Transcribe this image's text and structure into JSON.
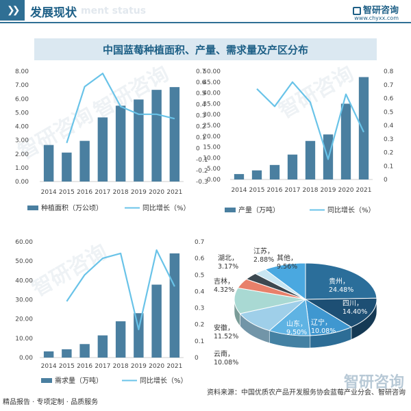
{
  "header": {
    "title": "发展现状",
    "ghost_text": "ment status"
  },
  "logo": {
    "name": "智研咨询",
    "url": "www.chyxx.com"
  },
  "banner": {
    "title": "中国蓝莓种植面积、产量、需求量及产区分布"
  },
  "watermark": "智研咨询",
  "footer": {
    "left": "精品报告 · 专项定制 · 品质服务",
    "source": "资料来源：中国优质农产品开发服务协会蓝莓产业分会、智研咨询",
    "logo": "智研咨询"
  },
  "colors": {
    "bar": "#4a7fa0",
    "line": "#69c3e8",
    "brand": "#1d5f86"
  },
  "chart_data": [
    {
      "type": "bar",
      "categories": [
        "2014",
        "2015",
        "2016",
        "2017",
        "2018",
        "2019",
        "2020",
        "2021"
      ],
      "series": [
        {
          "name": "种植面积（万公顷）",
          "kind": "bar",
          "axis": "left",
          "values": [
            2.65,
            2.1,
            2.95,
            4.65,
            5.5,
            5.95,
            6.65,
            6.85
          ]
        },
        {
          "name": "同比增长（%）",
          "kind": "line",
          "axis": "right",
          "values": [
            null,
            0.05,
            0.56,
            0.68,
            0.38,
            0.31,
            0.31,
            0.27
          ]
        }
      ],
      "ylim_left": [
        0,
        8
      ],
      "yticks_left": [
        "0.00",
        "1.00",
        "2.00",
        "3.00",
        "4.00",
        "5.00",
        "6.00",
        "7.00",
        "8.00"
      ],
      "ylim_right": [
        -0.3,
        0.7
      ],
      "yticks_right": [
        "-0.3",
        "-0.2",
        "-0.1",
        "0",
        "0.1",
        "0.2",
        "0.3",
        "0.4",
        "0.5",
        "0.6",
        "0.7"
      ],
      "legend": "bottom",
      "grid": false
    },
    {
      "type": "bar",
      "categories": [
        "2014",
        "2015",
        "2016",
        "2017",
        "2018",
        "2019",
        "2020",
        "2021"
      ],
      "series": [
        {
          "name": "产量（万吨）",
          "kind": "bar",
          "axis": "left",
          "values": [
            2.5,
            4.2,
            6.7,
            11.5,
            17.8,
            20.8,
            35.0,
            47.3
          ]
        },
        {
          "name": "同比增长（%）",
          "kind": "line",
          "axis": "right",
          "values": [
            null,
            0.67,
            0.54,
            0.72,
            0.57,
            0.15,
            0.63,
            0.35
          ]
        }
      ],
      "ylim_left": [
        0,
        50
      ],
      "yticks_left": [
        "0.00",
        "5.00",
        "10.00",
        "15.00",
        "20.00",
        "25.00",
        "30.00",
        "35.00",
        "40.00",
        "45.00",
        "50.00"
      ],
      "ylim_right": [
        0,
        0.8
      ],
      "yticks_right": [
        "0",
        "0.1",
        "0.2",
        "0.3",
        "0.4",
        "0.5",
        "0.6",
        "0.7",
        "0.8"
      ],
      "legend": "bottom",
      "grid": false
    },
    {
      "type": "bar",
      "categories": [
        "2014",
        "2015",
        "2016",
        "2017",
        "2018",
        "2019",
        "2020",
        "2021"
      ],
      "series": [
        {
          "name": "需求量（万吨）",
          "kind": "bar",
          "axis": "left",
          "values": [
            3.2,
            4.3,
            7.0,
            11.5,
            18.8,
            23.0,
            37.8,
            54.0
          ]
        },
        {
          "name": "同比增长（%）",
          "kind": "line",
          "axis": "right",
          "values": [
            null,
            0.34,
            0.5,
            0.6,
            0.63,
            0.17,
            0.65,
            0.43
          ]
        }
      ],
      "ylim_left": [
        0,
        60
      ],
      "yticks_left": [
        "0.00",
        "10.00",
        "20.00",
        "30.00",
        "40.00",
        "50.00",
        "60.00"
      ],
      "ylim_right": [
        0,
        0.7
      ],
      "yticks_right": [
        "0",
        "0.1",
        "0.2",
        "0.3",
        "0.4",
        "0.5",
        "0.6",
        "0.7"
      ],
      "legend": "bottom",
      "grid": false
    },
    {
      "type": "pie",
      "slices": [
        {
          "label": "贵州",
          "pct": "24.48%",
          "value": 24.48,
          "color": "#2b6e9a",
          "inside": true
        },
        {
          "label": "四川",
          "pct": "14.40%",
          "value": 14.4,
          "color": "#1d4f74",
          "inside": true
        },
        {
          "label": "辽宁",
          "pct": "10.08%",
          "value": 10.08,
          "color": "#3f97d0",
          "inside": true
        },
        {
          "label": "山东",
          "pct": "9.50%",
          "value": 9.5,
          "color": "#5fb3e3",
          "inside": true
        },
        {
          "label": "云南",
          "pct": "10.08%",
          "value": 10.08,
          "color": "#9fcfe9",
          "inside": false
        },
        {
          "label": "安徽",
          "pct": "11.52%",
          "value": 11.52,
          "color": "#a9d9d3",
          "inside": false
        },
        {
          "label": "吉林",
          "pct": "4.32%",
          "value": 4.32,
          "color": "#e8806a",
          "inside": false
        },
        {
          "label": "湖北",
          "pct": "3.17%",
          "value": 3.17,
          "color": "#3c4850",
          "inside": false
        },
        {
          "label": "江苏",
          "pct": "2.88%",
          "value": 2.88,
          "color": "#c8e6f2",
          "inside": false
        },
        {
          "label": "其他",
          "pct": "9.56%",
          "value": 9.56,
          "color": "#4aa8e0",
          "inside": false
        }
      ]
    }
  ]
}
